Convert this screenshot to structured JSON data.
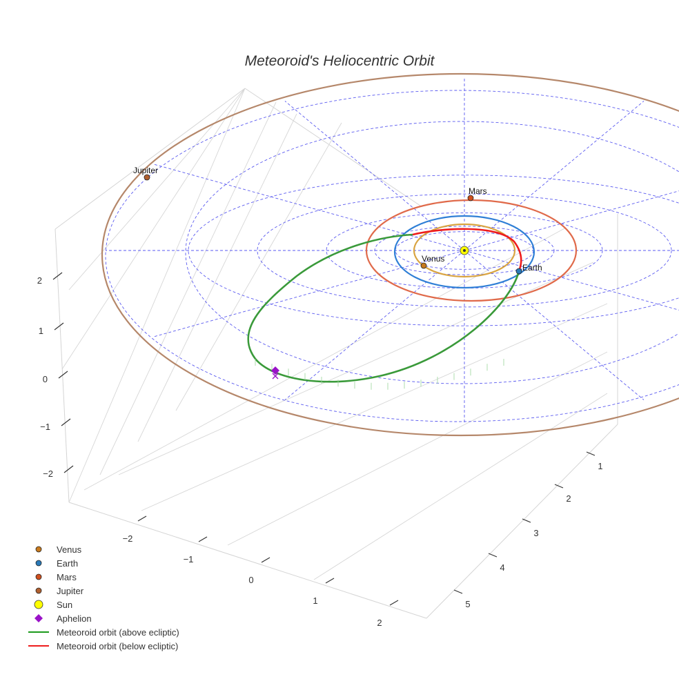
{
  "chart_data": {
    "type": "scatter",
    "title": "Meteoroid's Heliocentric Orbit",
    "x_ticks": [
      "−2",
      "−1",
      "0",
      "1",
      "2"
    ],
    "y_ticks": [
      "1",
      "2",
      "3",
      "4",
      "5"
    ],
    "z_ticks": [
      "2",
      "1",
      "0",
      "−1",
      "−2"
    ],
    "planets": [
      {
        "name": "Venus",
        "label": "Venus",
        "color": "#c87a1e",
        "orbit_color": "#d9a441"
      },
      {
        "name": "Earth",
        "label": "Earth",
        "color": "#2a7ab8",
        "orbit_color": "#2f7fd6"
      },
      {
        "name": "Mars",
        "label": "Mars",
        "color": "#d0501e",
        "orbit_color": "#e06a4a"
      },
      {
        "name": "Jupiter",
        "label": "Jupiter",
        "color": "#b06030",
        "orbit_color": "#b5876a"
      }
    ],
    "sun": {
      "name": "Sun",
      "color": "#ffff00"
    },
    "aphelion": {
      "name": "Aphelion",
      "color": "#9a12c8"
    },
    "series": [
      {
        "name": "Meteoroid orbit (above ecliptic)",
        "color": "#3a9a3a"
      },
      {
        "name": "Meteoroid orbit (below ecliptic)",
        "color": "#ee1c1c"
      }
    ],
    "legend_position": "bottom-left"
  },
  "legend": [
    {
      "label": "Venus",
      "symbol": "dot",
      "color": "#c87a1e"
    },
    {
      "label": "Earth",
      "symbol": "dot",
      "color": "#2a7ab8"
    },
    {
      "label": "Mars",
      "symbol": "dot",
      "color": "#d0501e"
    },
    {
      "label": "Jupiter",
      "symbol": "dot",
      "color": "#b06030"
    },
    {
      "label": "Sun",
      "symbol": "sun",
      "color": "#ffff00"
    },
    {
      "label": "Aphelion",
      "symbol": "diamond",
      "color": "#9a12c8"
    },
    {
      "label": "Meteoroid orbit (above ecliptic)",
      "symbol": "line",
      "color": "#1a9a1a"
    },
    {
      "label": "Meteoroid orbit (below ecliptic)",
      "symbol": "line",
      "color": "#ee1c1c"
    }
  ]
}
